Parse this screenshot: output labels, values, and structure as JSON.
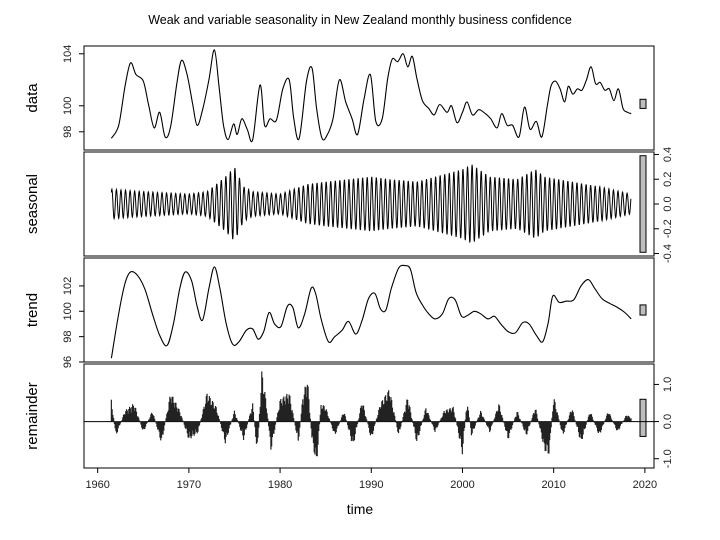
{
  "chart_data": {
    "type": "line",
    "title": "Weak and variable seasonality in New Zealand monthly business confidence",
    "xlabel": "time",
    "xlim": [
      1958.5,
      2021
    ],
    "x_ticks": [
      1960,
      1970,
      1980,
      1990,
      2000,
      2010,
      2020
    ],
    "x_start": 1961.5,
    "x_end": 2018.5,
    "range_bars": true,
    "panels": [
      {
        "name": "data",
        "label": "data",
        "axis_side": "left",
        "ylim": [
          96.6,
          104.6
        ],
        "ticks": [
          98,
          100,
          104
        ],
        "tick_labels": [
          "98",
          "100",
          "104"
        ],
        "range_bar": [
          99.8,
          100.5
        ],
        "series_type": "line",
        "points": [
          [
            1961.5,
            97.5
          ],
          [
            1962.3,
            98.5
          ],
          [
            1963.0,
            101.5
          ],
          [
            1963.6,
            103.3
          ],
          [
            1964.2,
            102.4
          ],
          [
            1965.0,
            101.9
          ],
          [
            1965.6,
            100.0
          ],
          [
            1966.2,
            98.3
          ],
          [
            1966.8,
            99.5
          ],
          [
            1967.4,
            97.6
          ],
          [
            1968.0,
            98.4
          ],
          [
            1968.7,
            101.8
          ],
          [
            1969.2,
            103.5
          ],
          [
            1969.8,
            102.4
          ],
          [
            1970.4,
            100.2
          ],
          [
            1970.9,
            98.5
          ],
          [
            1971.5,
            99.7
          ],
          [
            1972.2,
            102.0
          ],
          [
            1972.8,
            104.3
          ],
          [
            1973.3,
            101.5
          ],
          [
            1973.8,
            98.5
          ],
          [
            1974.3,
            97.4
          ],
          [
            1974.9,
            98.6
          ],
          [
            1975.3,
            97.8
          ],
          [
            1975.8,
            99.0
          ],
          [
            1976.4,
            98.2
          ],
          [
            1977.0,
            97.4
          ],
          [
            1977.8,
            101.6
          ],
          [
            1978.3,
            98.5
          ],
          [
            1978.9,
            99.0
          ],
          [
            1979.6,
            98.9
          ],
          [
            1980.3,
            101.3
          ],
          [
            1981.0,
            102.0
          ],
          [
            1981.5,
            99.0
          ],
          [
            1982.1,
            97.5
          ],
          [
            1982.9,
            101.9
          ],
          [
            1983.5,
            102.9
          ],
          [
            1984.0,
            99.8
          ],
          [
            1984.6,
            97.5
          ],
          [
            1985.2,
            97.8
          ],
          [
            1985.8,
            99.0
          ],
          [
            1986.5,
            102.0
          ],
          [
            1987.2,
            100.3
          ],
          [
            1987.9,
            99.0
          ],
          [
            1988.5,
            97.8
          ],
          [
            1989.2,
            100.5
          ],
          [
            1989.9,
            102.4
          ],
          [
            1990.5,
            98.8
          ],
          [
            1991.2,
            99.0
          ],
          [
            1991.8,
            102.1
          ],
          [
            1992.3,
            103.6
          ],
          [
            1992.9,
            103.4
          ],
          [
            1993.5,
            104.0
          ],
          [
            1994.0,
            103.0
          ],
          [
            1994.5,
            103.8
          ],
          [
            1995.0,
            102.1
          ],
          [
            1995.6,
            100.4
          ],
          [
            1996.3,
            99.8
          ],
          [
            1996.9,
            99.3
          ],
          [
            1997.5,
            100.1
          ],
          [
            1998.3,
            99.5
          ],
          [
            1998.8,
            100.0
          ],
          [
            1999.4,
            98.7
          ],
          [
            2000.0,
            99.5
          ],
          [
            2000.5,
            100.3
          ],
          [
            2001.1,
            99.3
          ],
          [
            2001.8,
            99.7
          ],
          [
            2002.5,
            99.4
          ],
          [
            2003.1,
            99.0
          ],
          [
            2003.8,
            98.3
          ],
          [
            2004.3,
            99.4
          ],
          [
            2004.9,
            98.5
          ],
          [
            2005.5,
            98.5
          ],
          [
            2006.2,
            97.6
          ],
          [
            2006.8,
            99.9
          ],
          [
            2007.4,
            98.2
          ],
          [
            2008.1,
            98.8
          ],
          [
            2008.7,
            97.6
          ],
          [
            2009.3,
            100.0
          ],
          [
            2009.7,
            101.5
          ],
          [
            2010.2,
            101.9
          ],
          [
            2010.7,
            101.3
          ],
          [
            2011.2,
            100.3
          ],
          [
            2011.6,
            101.5
          ],
          [
            2012.1,
            100.9
          ],
          [
            2012.6,
            101.3
          ],
          [
            2013.1,
            101.2
          ],
          [
            2013.6,
            102.0
          ],
          [
            2014.1,
            103.0
          ],
          [
            2014.6,
            101.7
          ],
          [
            2015.1,
            101.8
          ],
          [
            2015.6,
            101.2
          ],
          [
            2016.1,
            101.3
          ],
          [
            2016.6,
            100.4
          ],
          [
            2017.1,
            101.3
          ],
          [
            2017.6,
            99.8
          ],
          [
            2018.1,
            99.5
          ],
          [
            2018.5,
            99.4
          ]
        ]
      },
      {
        "name": "seasonal",
        "label": "seasonal",
        "axis_side": "right",
        "ylim": [
          -0.42,
          0.42
        ],
        "ticks": [
          -0.4,
          -0.2,
          0.0,
          0.2,
          0.4
        ],
        "tick_labels": [
          "-0.4",
          "-0.2",
          "0.0",
          "0.2",
          "0.4"
        ],
        "range_bar": [
          -0.39,
          0.39
        ],
        "series_type": "oscillation",
        "period": 1.0,
        "amplitude_envelope": [
          [
            1961.5,
            0.12
          ],
          [
            1965,
            0.1
          ],
          [
            1970,
            0.08
          ],
          [
            1972,
            0.1
          ],
          [
            1974,
            0.22
          ],
          [
            1975,
            0.3
          ],
          [
            1976,
            0.14
          ],
          [
            1977,
            0.1
          ],
          [
            1980,
            0.08
          ],
          [
            1983,
            0.16
          ],
          [
            1985,
            0.18
          ],
          [
            1990,
            0.22
          ],
          [
            1992,
            0.2
          ],
          [
            1995,
            0.18
          ],
          [
            1998,
            0.24
          ],
          [
            2000,
            0.28
          ],
          [
            2001,
            0.32
          ],
          [
            2003,
            0.22
          ],
          [
            2006,
            0.2
          ],
          [
            2008,
            0.28
          ],
          [
            2009,
            0.22
          ],
          [
            2012,
            0.18
          ],
          [
            2015,
            0.14
          ],
          [
            2018.5,
            0.08
          ]
        ]
      },
      {
        "name": "trend",
        "label": "trend",
        "axis_side": "left",
        "ylim": [
          96.0,
          104.2
        ],
        "ticks": [
          96,
          98,
          100,
          102
        ],
        "tick_labels": [
          "96",
          "98",
          "100",
          "102"
        ],
        "range_bar": [
          99.7,
          100.5
        ],
        "series_type": "line",
        "points": [
          [
            1961.5,
            96.3
          ],
          [
            1962.3,
            99.8
          ],
          [
            1963.0,
            102.2
          ],
          [
            1963.6,
            103.1
          ],
          [
            1964.4,
            102.8
          ],
          [
            1965.2,
            101.7
          ],
          [
            1966.0,
            99.8
          ],
          [
            1966.8,
            98.1
          ],
          [
            1967.6,
            97.3
          ],
          [
            1968.3,
            99.0
          ],
          [
            1969.0,
            101.8
          ],
          [
            1969.6,
            103.1
          ],
          [
            1970.3,
            102.4
          ],
          [
            1970.9,
            100.4
          ],
          [
            1971.5,
            99.3
          ],
          [
            1972.2,
            101.8
          ],
          [
            1972.8,
            103.5
          ],
          [
            1973.4,
            101.8
          ],
          [
            1974.1,
            99.0
          ],
          [
            1974.8,
            97.4
          ],
          [
            1975.5,
            97.6
          ],
          [
            1976.3,
            98.5
          ],
          [
            1977.0,
            98.6
          ],
          [
            1977.6,
            97.8
          ],
          [
            1978.2,
            98.4
          ],
          [
            1978.8,
            99.9
          ],
          [
            1979.4,
            99.0
          ],
          [
            1980.1,
            98.8
          ],
          [
            1980.8,
            100.4
          ],
          [
            1981.4,
            100.3
          ],
          [
            1982.0,
            98.7
          ],
          [
            1982.7,
            99.8
          ],
          [
            1983.4,
            101.8
          ],
          [
            1983.9,
            101.4
          ],
          [
            1984.5,
            99.4
          ],
          [
            1985.3,
            97.6
          ],
          [
            1986.0,
            98.0
          ],
          [
            1986.8,
            98.5
          ],
          [
            1987.5,
            99.2
          ],
          [
            1988.3,
            98.2
          ],
          [
            1989.0,
            99.3
          ],
          [
            1989.7,
            101.0
          ],
          [
            1990.4,
            101.4
          ],
          [
            1991.0,
            100.2
          ],
          [
            1991.6,
            100.1
          ],
          [
            1992.2,
            101.8
          ],
          [
            1993.0,
            103.4
          ],
          [
            1993.7,
            103.6
          ],
          [
            1994.3,
            103.3
          ],
          [
            1994.9,
            101.5
          ],
          [
            1995.6,
            100.5
          ],
          [
            1996.3,
            99.8
          ],
          [
            1997.0,
            99.4
          ],
          [
            1997.8,
            99.8
          ],
          [
            1998.5,
            101.0
          ],
          [
            1999.2,
            100.9
          ],
          [
            1999.9,
            99.6
          ],
          [
            2000.6,
            99.7
          ],
          [
            2001.3,
            100.0
          ],
          [
            2002.0,
            99.8
          ],
          [
            2002.8,
            99.4
          ],
          [
            2003.5,
            99.6
          ],
          [
            2004.2,
            99.0
          ],
          [
            2005.0,
            98.4
          ],
          [
            2005.8,
            98.3
          ],
          [
            2006.6,
            99.1
          ],
          [
            2007.3,
            99.0
          ],
          [
            2008.1,
            98.1
          ],
          [
            2008.8,
            97.6
          ],
          [
            2009.4,
            99.1
          ],
          [
            2009.9,
            101.2
          ],
          [
            2010.6,
            100.7
          ],
          [
            2011.4,
            100.8
          ],
          [
            2012.2,
            100.9
          ],
          [
            2013.0,
            102.0
          ],
          [
            2013.8,
            102.5
          ],
          [
            2014.5,
            101.8
          ],
          [
            2015.3,
            101.0
          ],
          [
            2016.2,
            100.6
          ],
          [
            2017.0,
            100.3
          ],
          [
            2017.8,
            99.9
          ],
          [
            2018.5,
            99.4
          ]
        ]
      },
      {
        "name": "remainder",
        "label": "remainder",
        "axis_side": "right",
        "ylim": [
          -1.25,
          1.55
        ],
        "ticks": [
          -1.0,
          0.0,
          1.0
        ],
        "tick_labels": [
          "-1.0",
          "0.0",
          "1.0"
        ],
        "range_bar": [
          -0.4,
          0.6
        ],
        "series_type": "bars",
        "step": 0.0833,
        "envelope": [
          [
            1961.5,
            0.6
          ],
          [
            1962,
            -0.4
          ],
          [
            1963,
            0.3
          ],
          [
            1964,
            0.5
          ],
          [
            1965,
            -0.3
          ],
          [
            1966,
            0.3
          ],
          [
            1967,
            -0.6
          ],
          [
            1968,
            0.8
          ],
          [
            1969,
            0.3
          ],
          [
            1970,
            -0.5
          ],
          [
            1971,
            -0.3
          ],
          [
            1972,
            0.8
          ],
          [
            1973,
            0.4
          ],
          [
            1974,
            -0.6
          ],
          [
            1975,
            0.3
          ],
          [
            1976,
            -0.5
          ],
          [
            1977,
            0.5
          ],
          [
            1977.5,
            -0.9
          ],
          [
            1978,
            1.4
          ],
          [
            1978.5,
            0.5
          ],
          [
            1979,
            -0.8
          ],
          [
            1980,
            0.6
          ],
          [
            1981,
            0.8
          ],
          [
            1982,
            -0.6
          ],
          [
            1982.5,
            0.7
          ],
          [
            1983,
            1.2
          ],
          [
            1983.5,
            -0.5
          ],
          [
            1984,
            -1.2
          ],
          [
            1984.5,
            0.5
          ],
          [
            1985,
            0.4
          ],
          [
            1986,
            -0.4
          ],
          [
            1987,
            0.3
          ],
          [
            1988,
            -0.7
          ],
          [
            1989,
            0.6
          ],
          [
            1990,
            -0.5
          ],
          [
            1991,
            0.5
          ],
          [
            1992,
            0.9
          ],
          [
            1993,
            -0.4
          ],
          [
            1994,
            0.7
          ],
          [
            1995,
            -0.6
          ],
          [
            1996,
            0.4
          ],
          [
            1997,
            -0.3
          ],
          [
            1998,
            0.3
          ],
          [
            1999,
            0.4
          ],
          [
            2000,
            -0.9
          ],
          [
            2000.5,
            0.6
          ],
          [
            2001,
            -0.4
          ],
          [
            2002,
            0.3
          ],
          [
            2003,
            -0.3
          ],
          [
            2004,
            0.5
          ],
          [
            2005,
            -0.5
          ],
          [
            2006,
            0.3
          ],
          [
            2007,
            -0.4
          ],
          [
            2008,
            0.4
          ],
          [
            2009,
            -0.8
          ],
          [
            2009.5,
            -0.9
          ],
          [
            2010,
            0.7
          ],
          [
            2011,
            -0.4
          ],
          [
            2012,
            0.4
          ],
          [
            2013,
            -0.6
          ],
          [
            2014,
            0.3
          ],
          [
            2015,
            -0.4
          ],
          [
            2016,
            0.3
          ],
          [
            2017,
            -0.3
          ],
          [
            2018,
            0.2
          ],
          [
            2018.5,
            0.1
          ]
        ]
      }
    ]
  }
}
